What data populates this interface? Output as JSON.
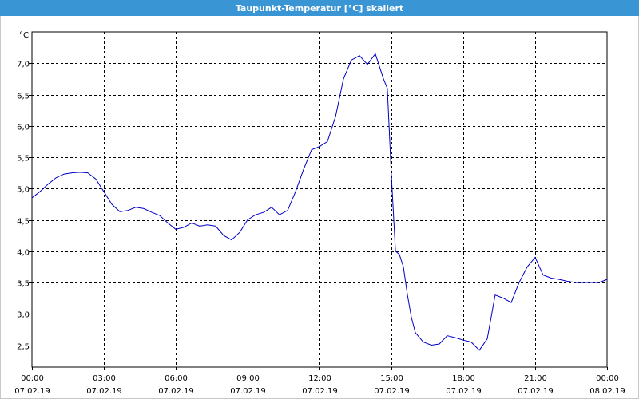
{
  "window": {
    "title": "Taupunkt-Temperatur [°C] skaliert"
  },
  "colors": {
    "titlebar": "#3a95d4",
    "line": "#0000c8",
    "grid": "#000000"
  },
  "chart_data": {
    "type": "line",
    "title": "Taupunkt-Temperatur [°C] skaliert",
    "ylabel": "°C",
    "xlabel": "",
    "ylim": [
      2.15,
      7.5
    ],
    "yticks": [
      2.5,
      3.0,
      3.5,
      4.0,
      4.5,
      5.0,
      5.5,
      6.0,
      6.5,
      7.0
    ],
    "ytick_labels": [
      "2,5",
      "3,0",
      "3,5",
      "4,0",
      "4,5",
      "5,0",
      "5,5",
      "6,0",
      "6,5",
      "7,0"
    ],
    "xlim": [
      0,
      24
    ],
    "xticks": [
      0,
      3,
      6,
      9,
      12,
      15,
      18,
      21,
      24
    ],
    "xtick_labels": [
      [
        "00:00",
        "07.02.19"
      ],
      [
        "03:00",
        "07.02.19"
      ],
      [
        "06:00",
        "07.02.19"
      ],
      [
        "09:00",
        "07.02.19"
      ],
      [
        "12:00",
        "07.02.19"
      ],
      [
        "15:00",
        "07.02.19"
      ],
      [
        "18:00",
        "07.02.19"
      ],
      [
        "21:00",
        "07.02.19"
      ],
      [
        "00:00",
        "08.02.19"
      ]
    ],
    "grid": true,
    "series": [
      {
        "x": [
          0,
          0.33,
          0.67,
          1.0,
          1.33,
          1.67,
          2.0,
          2.33,
          2.67,
          3.0,
          3.33,
          3.67,
          4.0,
          4.33,
          4.67,
          5.0,
          5.33,
          5.67,
          6.0,
          6.33,
          6.67,
          7.0,
          7.33,
          7.67,
          8.0,
          8.33,
          8.67,
          9.0,
          9.33,
          9.67,
          10.0,
          10.33,
          10.67,
          11.0,
          11.33,
          11.67,
          12.0,
          12.33,
          12.67,
          13.0,
          13.33,
          13.67,
          14.0,
          14.33,
          14.67,
          14.83,
          15.0,
          15.17,
          15.33,
          15.5,
          15.67,
          15.83,
          16.0,
          16.33,
          16.67,
          17.0,
          17.33,
          17.67,
          18.0,
          18.33,
          18.67,
          19.0,
          19.33,
          19.67,
          20.0,
          20.33,
          20.67,
          21.0,
          21.33,
          21.67,
          22.0,
          22.33,
          22.67,
          23.0,
          23.33,
          23.67,
          24.0
        ],
        "y": [
          4.85,
          4.95,
          5.07,
          5.17,
          5.23,
          5.25,
          5.26,
          5.25,
          5.15,
          4.95,
          4.75,
          4.63,
          4.65,
          4.7,
          4.68,
          4.62,
          4.57,
          4.45,
          4.35,
          4.38,
          4.45,
          4.4,
          4.42,
          4.4,
          4.25,
          4.18,
          4.3,
          4.5,
          4.58,
          4.62,
          4.7,
          4.58,
          4.65,
          4.95,
          5.3,
          5.62,
          5.67,
          5.75,
          6.15,
          6.75,
          7.05,
          7.12,
          6.98,
          7.15,
          6.75,
          6.6,
          5.2,
          4.0,
          3.95,
          3.75,
          3.3,
          2.95,
          2.7,
          2.55,
          2.5,
          2.52,
          2.65,
          2.62,
          2.58,
          2.55,
          2.42,
          2.6,
          3.3,
          3.25,
          3.18,
          3.5,
          3.75,
          3.9,
          3.62,
          3.57,
          3.55,
          3.52,
          3.5,
          3.5,
          3.5,
          3.5,
          3.55
        ]
      }
    ]
  }
}
